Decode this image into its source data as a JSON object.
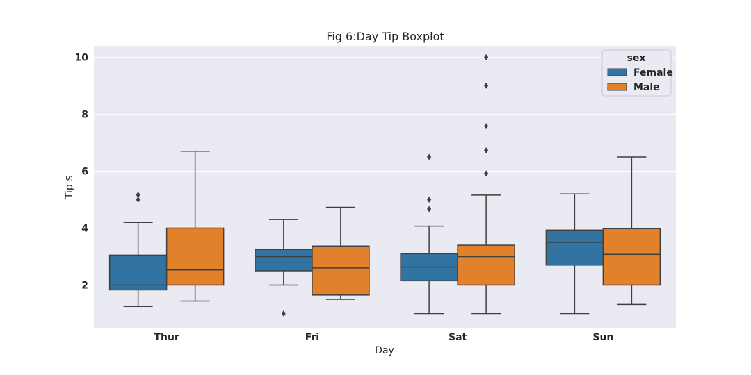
{
  "chart_data": {
    "type": "box",
    "title": "Fig 6:Day Tip Boxplot",
    "xlabel": "Day",
    "ylabel": "Tip $",
    "ylim": [
      0.5,
      10.4
    ],
    "yticks": [
      2,
      4,
      6,
      8,
      10
    ],
    "grid": true,
    "categories": [
      "Thur",
      "Fri",
      "Sat",
      "Sun"
    ],
    "legend": {
      "title": "sex",
      "placement": "top-right"
    },
    "colors": {
      "Female": "#3274a1",
      "Male": "#e1812c",
      "background": "#eaeaf2",
      "line": "#3f3f3f"
    },
    "series": [
      {
        "name": "Female",
        "boxes": [
          {
            "category": "Thur",
            "whisker_low": 1.25,
            "q1": 1.83,
            "median": 2.0,
            "q3": 3.05,
            "whisker_high": 4.2,
            "outliers": [
              5.0,
              5.17
            ]
          },
          {
            "category": "Fri",
            "whisker_low": 2.0,
            "q1": 2.5,
            "median": 3.0,
            "q3": 3.25,
            "whisker_high": 4.3,
            "outliers": [
              1.0
            ]
          },
          {
            "category": "Sat",
            "whisker_low": 1.0,
            "q1": 2.15,
            "median": 2.63,
            "q3": 3.1,
            "whisker_high": 4.07,
            "outliers": [
              4.67,
              5.0,
              6.5
            ]
          },
          {
            "category": "Sun",
            "whisker_low": 1.0,
            "q1": 2.7,
            "median": 3.5,
            "q3": 3.93,
            "whisker_high": 5.2,
            "outliers": []
          }
        ]
      },
      {
        "name": "Male",
        "boxes": [
          {
            "category": "Thur",
            "whisker_low": 1.44,
            "q1": 2.0,
            "median": 2.53,
            "q3": 4.0,
            "whisker_high": 6.7,
            "outliers": []
          },
          {
            "category": "Fri",
            "whisker_low": 1.5,
            "q1": 1.65,
            "median": 2.6,
            "q3": 3.37,
            "whisker_high": 4.73,
            "outliers": []
          },
          {
            "category": "Sat",
            "whisker_low": 1.0,
            "q1": 2.0,
            "median": 3.0,
            "q3": 3.4,
            "whisker_high": 5.16,
            "outliers": [
              5.92,
              6.73,
              7.58,
              9.0,
              10.0
            ]
          },
          {
            "category": "Sun",
            "whisker_low": 1.32,
            "q1": 2.0,
            "median": 3.08,
            "q3": 3.98,
            "whisker_high": 6.5,
            "outliers": []
          }
        ]
      }
    ]
  }
}
